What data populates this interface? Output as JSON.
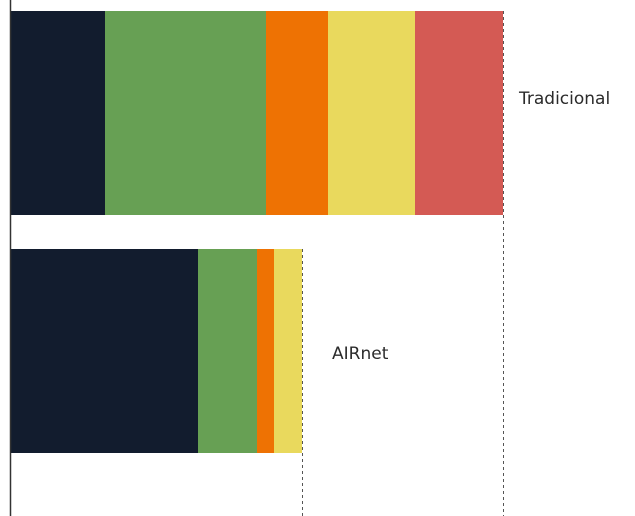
{
  "chart_data": {
    "type": "bar",
    "orientation": "horizontal",
    "stacked": true,
    "categories": [
      "Tradicional",
      "AIRnet"
    ],
    "series": [
      {
        "color": "#121c2e",
        "values": [
          94,
          187
        ]
      },
      {
        "color": "#67a054",
        "values": [
          161,
          59
        ]
      },
      {
        "color": "#ee7203",
        "values": [
          62,
          17
        ]
      },
      {
        "color": "#e9d95d",
        "values": [
          87,
          28
        ]
      },
      {
        "color": "#d45a54",
        "values": [
          88,
          0
        ]
      }
    ],
    "totals": [
      492,
      291
    ],
    "reference_lines": "dashed vertical lines at the end of each bar",
    "xlim": [
      0,
      620
    ],
    "axis": "vertical baseline at left, no ticks",
    "legend": "none",
    "grid": false
  }
}
